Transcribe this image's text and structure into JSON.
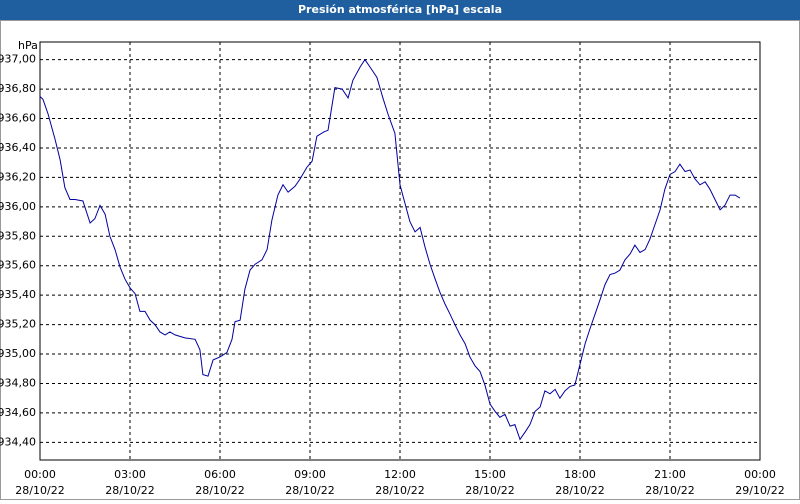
{
  "chart_data": {
    "type": "line",
    "title": "Presión atmosférica [hPa] escala",
    "y_unit": "hPa",
    "x": [
      0,
      0.1,
      0.27,
      0.5,
      0.67,
      0.83,
      1.0,
      1.17,
      1.43,
      1.67,
      1.83,
      2.0,
      2.17,
      2.33,
      2.5,
      2.67,
      2.83,
      3.0,
      3.17,
      3.33,
      3.5,
      3.67,
      3.83,
      4.0,
      4.17,
      4.33,
      4.5,
      4.83,
      5.17,
      5.33,
      5.43,
      5.6,
      5.77,
      6.0,
      6.23,
      6.4,
      6.5,
      6.67,
      6.83,
      7.0,
      7.17,
      7.4,
      7.57,
      7.73,
      7.93,
      8.1,
      8.27,
      8.5,
      8.67,
      8.9,
      9.07,
      9.23,
      9.47,
      9.6,
      9.83,
      10.07,
      10.27,
      10.43,
      10.67,
      10.83,
      11.0,
      11.23,
      11.43,
      11.6,
      11.83,
      12.0,
      12.17,
      12.33,
      12.5,
      12.67,
      12.83,
      13.0,
      13.17,
      13.33,
      13.5,
      13.67,
      13.83,
      14.0,
      14.17,
      14.33,
      14.5,
      14.67,
      14.83,
      15.0,
      15.17,
      15.33,
      15.5,
      15.67,
      15.83,
      16.0,
      16.17,
      16.33,
      16.5,
      16.67,
      16.83,
      17.0,
      17.17,
      17.33,
      17.5,
      17.67,
      17.83,
      18.0,
      18.17,
      18.33,
      18.5,
      18.67,
      18.83,
      19.0,
      19.17,
      19.33,
      19.5,
      19.67,
      19.83,
      20.0,
      20.17,
      20.33,
      20.5,
      20.67,
      20.83,
      21.0,
      21.17,
      21.33,
      21.5,
      21.67,
      21.83,
      22.0,
      22.17,
      22.33,
      22.5,
      22.67,
      22.83,
      23.0,
      23.17,
      23.33
    ],
    "series": [
      {
        "color": "#0000a0",
        "values": [
          936.75,
          936.73,
          936.63,
          936.46,
          936.32,
          936.13,
          936.05,
          936.05,
          936.04,
          935.89,
          935.92,
          936.01,
          935.95,
          935.8,
          935.71,
          935.59,
          935.51,
          935.45,
          935.41,
          935.29,
          935.29,
          935.23,
          935.2,
          935.15,
          935.13,
          935.15,
          935.13,
          935.11,
          935.1,
          935.03,
          934.86,
          934.85,
          934.96,
          934.98,
          935.01,
          935.1,
          935.22,
          935.23,
          935.44,
          935.57,
          935.61,
          935.64,
          935.71,
          935.91,
          936.08,
          936.15,
          936.1,
          936.14,
          936.19,
          936.27,
          936.31,
          936.48,
          936.51,
          936.52,
          936.81,
          936.8,
          936.74,
          936.86,
          936.95,
          937.0,
          936.95,
          936.88,
          936.74,
          936.63,
          936.5,
          936.15,
          936.02,
          935.9,
          935.83,
          935.86,
          935.73,
          935.61,
          935.51,
          935.42,
          935.34,
          935.27,
          935.2,
          935.13,
          935.07,
          934.98,
          934.92,
          934.88,
          934.79,
          934.66,
          934.61,
          934.57,
          934.59,
          934.51,
          934.52,
          934.42,
          934.47,
          934.52,
          934.61,
          934.64,
          934.75,
          934.73,
          934.76,
          934.7,
          934.75,
          934.78,
          934.79,
          934.93,
          935.07,
          935.17,
          935.27,
          935.37,
          935.47,
          935.54,
          935.55,
          935.57,
          935.64,
          935.68,
          935.74,
          935.69,
          935.71,
          935.78,
          935.88,
          935.98,
          936.12,
          936.22,
          936.24,
          936.29,
          936.24,
          936.25,
          936.19,
          936.15,
          936.17,
          936.12,
          936.05,
          935.98,
          936.01,
          936.08,
          936.08,
          936.06
        ]
      }
    ],
    "xlim": [
      0,
      24
    ],
    "ylim": [
      934.28,
      937.12
    ],
    "xticks": [
      {
        "value": 0,
        "label": "00:00"
      },
      {
        "value": 3,
        "label": "03:00"
      },
      {
        "value": 6,
        "label": "06:00"
      },
      {
        "value": 9,
        "label": "09:00"
      },
      {
        "value": 12,
        "label": "12:00"
      },
      {
        "value": 15,
        "label": "15:00"
      },
      {
        "value": 18,
        "label": "18:00"
      },
      {
        "value": 21,
        "label": "21:00"
      },
      {
        "value": 24,
        "label": "00:00"
      }
    ],
    "xtick_dates": [
      "28/10/22",
      "28/10/22",
      "28/10/22",
      "28/10/22",
      "28/10/22",
      "28/10/22",
      "28/10/22",
      "28/10/22",
      "29/10/22"
    ],
    "yticks": [
      {
        "value": 934.4,
        "label": "934,40"
      },
      {
        "value": 934.6,
        "label": "934,60"
      },
      {
        "value": 934.8,
        "label": "934,80"
      },
      {
        "value": 935.0,
        "label": "935,00"
      },
      {
        "value": 935.2,
        "label": "935,20"
      },
      {
        "value": 935.4,
        "label": "935,40"
      },
      {
        "value": 935.6,
        "label": "935,60"
      },
      {
        "value": 935.8,
        "label": "935,80"
      },
      {
        "value": 936.0,
        "label": "936,00"
      },
      {
        "value": 936.2,
        "label": "936,20"
      },
      {
        "value": 936.4,
        "label": "936,40"
      },
      {
        "value": 936.6,
        "label": "936,60"
      },
      {
        "value": 936.8,
        "label": "936,80"
      },
      {
        "value": 937.0,
        "label": "937,00"
      }
    ],
    "grid": true
  }
}
